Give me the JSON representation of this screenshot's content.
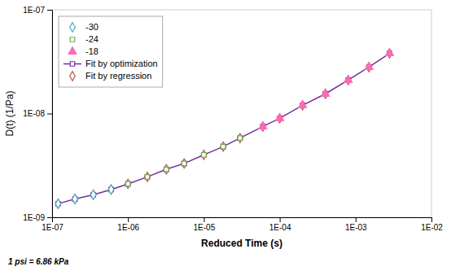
{
  "chart_data": {
    "type": "scatter",
    "xlabel": "Reduced Time (s)",
    "ylabel": "D(t) (1/Pa)",
    "annotations": [
      "1 psi = 6.86 kPa"
    ],
    "log": true,
    "grid": false,
    "legend": "upper left",
    "xlim": [
      1e-07,
      0.01
    ],
    "ylim": [
      1e-09,
      1e-07
    ],
    "xticks": [
      {
        "value": 1e-07,
        "label": "1E-07"
      },
      {
        "value": 1e-06,
        "label": "1E-06"
      },
      {
        "value": 1e-05,
        "label": "1E-05"
      },
      {
        "value": 0.0001,
        "label": "1E-04"
      },
      {
        "value": 0.001,
        "label": "1E-03"
      },
      {
        "value": 0.01,
        "label": "1E-02"
      }
    ],
    "yticks": [
      {
        "value": 1e-09,
        "label": "1E-09"
      },
      {
        "value": 1e-08,
        "label": "1E-08"
      },
      {
        "value": 1e-07,
        "label": "1E-07"
      }
    ],
    "series": [
      {
        "name": "-30",
        "type": "scatter",
        "marker": "open-diamond",
        "color": "#4bacc6",
        "x": [
          1.2e-07,
          2e-07,
          3.5e-07,
          6e-07
        ],
        "values": [
          1.35e-09,
          1.5e-09,
          1.65e-09,
          1.85e-09
        ]
      },
      {
        "name": "-24",
        "type": "scatter",
        "marker": "open-square",
        "color": "#70ad47",
        "x": [
          1e-06,
          1.8e-06,
          3.2e-06,
          5.5e-06,
          1e-05,
          1.8e-05,
          3e-05
        ],
        "values": [
          2.1e-09,
          2.45e-09,
          2.9e-09,
          3.3e-09,
          4e-09,
          4.8e-09,
          5.8e-09
        ]
      },
      {
        "name": "-18",
        "type": "scatter",
        "marker": "triangle",
        "color": "#ff69b4",
        "x": [
          6e-05,
          0.0001,
          0.0002,
          0.0004,
          0.0008,
          0.0015,
          0.0028
        ],
        "values": [
          7.5e-09,
          9e-09,
          1.2e-08,
          1.55e-08,
          2.1e-08,
          2.8e-08,
          3.8e-08
        ]
      },
      {
        "name": "Fit by optimization",
        "type": "line",
        "line_style": "solid",
        "marker": "open-square",
        "color": "#7030a0",
        "x": [
          1.2e-07,
          2e-07,
          3.5e-07,
          6e-07,
          1e-06,
          1.8e-06,
          3.2e-06,
          5.5e-06,
          1e-05,
          1.8e-05,
          3e-05,
          6e-05,
          0.0001,
          0.0002,
          0.0004,
          0.0008,
          0.0015,
          0.0028
        ],
        "values": [
          1.35e-09,
          1.5e-09,
          1.65e-09,
          1.85e-09,
          2.1e-09,
          2.45e-09,
          2.9e-09,
          3.3e-09,
          4e-09,
          4.8e-09,
          5.8e-09,
          7.5e-09,
          9e-09,
          1.2e-08,
          1.55e-08,
          2.1e-08,
          2.8e-08,
          3.8e-08
        ]
      },
      {
        "name": "Fit by regression",
        "type": "scatter",
        "marker": "open-diamond",
        "color": "#c0504d",
        "x": [
          1.2e-07,
          2e-07,
          3.5e-07,
          6e-07,
          1e-06,
          1.8e-06,
          3.2e-06,
          5.5e-06,
          1e-05,
          1.8e-05,
          3e-05,
          6e-05,
          0.0001,
          0.0002,
          0.0004,
          0.0008,
          0.0015,
          0.0028
        ],
        "values": [
          1.35e-09,
          1.5e-09,
          1.65e-09,
          1.85e-09,
          2.1e-09,
          2.45e-09,
          2.9e-09,
          3.3e-09,
          4e-09,
          4.8e-09,
          5.8e-09,
          7.5e-09,
          9e-09,
          1.2e-08,
          1.55e-08,
          2.1e-08,
          2.8e-08,
          3.8e-08
        ]
      }
    ]
  }
}
